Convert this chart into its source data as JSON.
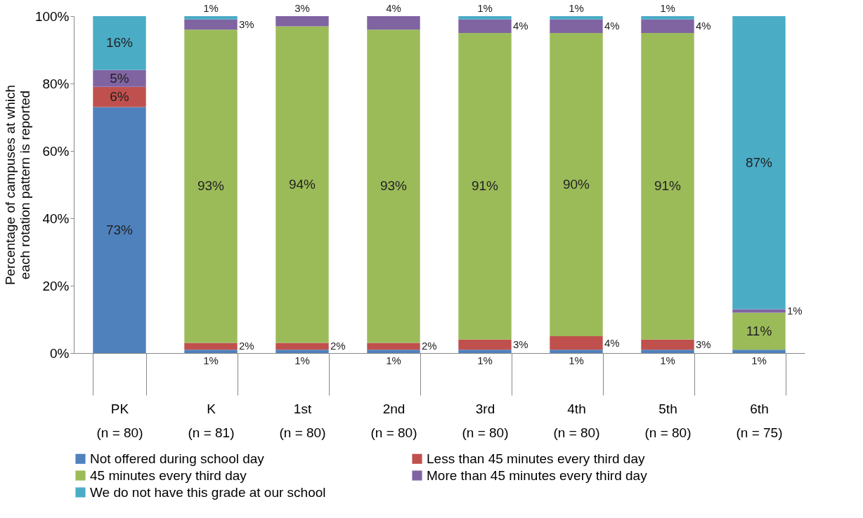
{
  "chart_data": {
    "type": "bar",
    "stacked": true,
    "legend": "bottom",
    "grid": false,
    "ylabel": "Percentage of campuses at which each rotation pattern is reported",
    "categories": [
      "PK\n(n = 80)",
      "K\n(n = 81)",
      "1st\n(n = 80)",
      "2nd\n(n = 80)",
      "3rd\n(n = 80)",
      "4th\n(n = 80)",
      "5th\n(n = 80)",
      "6th\n(n = 75)"
    ],
    "ylim": [
      0,
      100
    ],
    "yticks": [
      {
        "value": 0,
        "label": "0%"
      },
      {
        "value": 20,
        "label": "20%"
      },
      {
        "value": 40,
        "label": "40%"
      },
      {
        "value": 60,
        "label": "60%"
      },
      {
        "value": 80,
        "label": "80%"
      },
      {
        "value": 100,
        "label": "100%"
      }
    ],
    "series": [
      {
        "name": "Not offered during school day",
        "color": "#4f81bd",
        "values": [
          73,
          1,
          1,
          1,
          1,
          1,
          1,
          1
        ],
        "value_labels": [
          "73%",
          "1%",
          "1%",
          "1%",
          "1%",
          "1%",
          "1%",
          "1%"
        ]
      },
      {
        "name": "Less than 45 minutes every third day",
        "color": "#c0504d",
        "values": [
          6,
          2,
          2,
          2,
          3,
          4,
          3,
          null
        ],
        "value_labels": [
          "6%",
          "2%",
          "2%",
          "2%",
          "3%",
          "4%",
          "3%",
          null
        ]
      },
      {
        "name": "45 minutes every third day",
        "color": "#9bbb59",
        "values": [
          null,
          93,
          94,
          93,
          91,
          90,
          91,
          11
        ],
        "value_labels": [
          null,
          "93%",
          "94%",
          "93%",
          "91%",
          "90%",
          "91%",
          "11%"
        ]
      },
      {
        "name": "More than 45 minutes every third day",
        "color": "#8064a2",
        "values": [
          5,
          3,
          3,
          4,
          4,
          4,
          4,
          1
        ],
        "value_labels": [
          "5%",
          "3%",
          "3%",
          "4%",
          "4%",
          "4%",
          "4%",
          "1%"
        ]
      },
      {
        "name": "We do not have this grade at our school",
        "color": "#4bacc6",
        "values": [
          16,
          1,
          null,
          null,
          1,
          1,
          1,
          87
        ],
        "value_labels": [
          "16%",
          "1%",
          null,
          null,
          "1%",
          "1%",
          "1%",
          "87%"
        ]
      }
    ]
  }
}
